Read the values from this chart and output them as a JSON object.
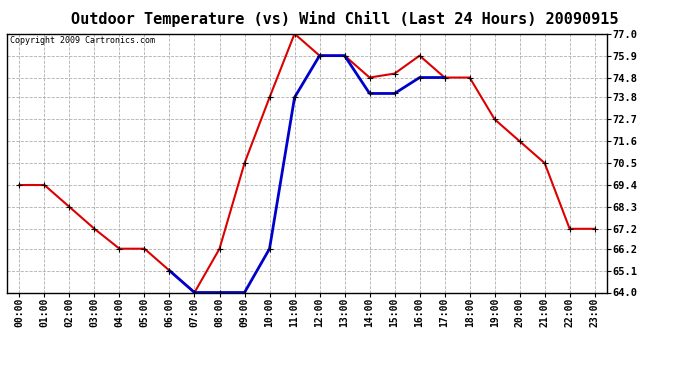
{
  "title": "Outdoor Temperature (vs) Wind Chill (Last 24 Hours) 20090915",
  "copyright": "Copyright 2009 Cartronics.com",
  "hours": [
    "00:00",
    "01:00",
    "02:00",
    "03:00",
    "04:00",
    "05:00",
    "06:00",
    "07:00",
    "08:00",
    "09:00",
    "10:00",
    "11:00",
    "12:00",
    "13:00",
    "14:00",
    "15:00",
    "16:00",
    "17:00",
    "18:00",
    "19:00",
    "20:00",
    "21:00",
    "22:00",
    "23:00"
  ],
  "temp": [
    69.4,
    69.4,
    68.3,
    67.2,
    66.2,
    66.2,
    65.1,
    64.0,
    66.2,
    70.5,
    73.8,
    77.0,
    75.9,
    75.9,
    74.8,
    75.0,
    75.9,
    74.8,
    74.8,
    72.7,
    71.6,
    70.5,
    67.2,
    67.2
  ],
  "wind_chill": [
    null,
    null,
    null,
    null,
    null,
    null,
    65.1,
    64.0,
    64.0,
    64.0,
    66.2,
    73.8,
    75.9,
    75.9,
    74.0,
    74.0,
    74.8,
    74.8,
    null,
    null,
    null,
    null,
    null,
    null
  ],
  "temp_color": "#dd0000",
  "wind_chill_color": "#0000cc",
  "ylim_min": 64.0,
  "ylim_max": 77.0,
  "yticks": [
    64.0,
    65.1,
    66.2,
    67.2,
    68.3,
    69.4,
    70.5,
    71.6,
    72.7,
    73.8,
    74.8,
    75.9,
    77.0
  ],
  "background_color": "#ffffff",
  "grid_color": "#b0b0b0",
  "title_fontsize": 11,
  "marker_size": 5
}
